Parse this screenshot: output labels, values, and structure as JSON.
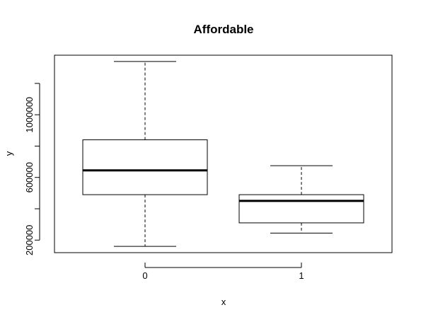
{
  "chart_data": {
    "type": "boxplot",
    "title": "Affordable",
    "xlabel": "x",
    "ylabel": "y",
    "categories": [
      "0",
      "1"
    ],
    "boxes": [
      {
        "category": "0",
        "min": 160000,
        "q1": 490000,
        "median": 645000,
        "q3": 840000,
        "max": 1340000
      },
      {
        "category": "1",
        "min": 245000,
        "q1": 310000,
        "median": 450000,
        "q3": 490000,
        "max": 675000
      }
    ],
    "yticks": [
      200000,
      400000,
      600000,
      800000,
      1000000,
      1200000
    ],
    "ytick_labels": [
      "200000",
      "",
      "600000",
      "",
      "1000000",
      ""
    ],
    "ylim": [
      120000,
      1380000
    ],
    "grid": false,
    "legend": "none"
  }
}
